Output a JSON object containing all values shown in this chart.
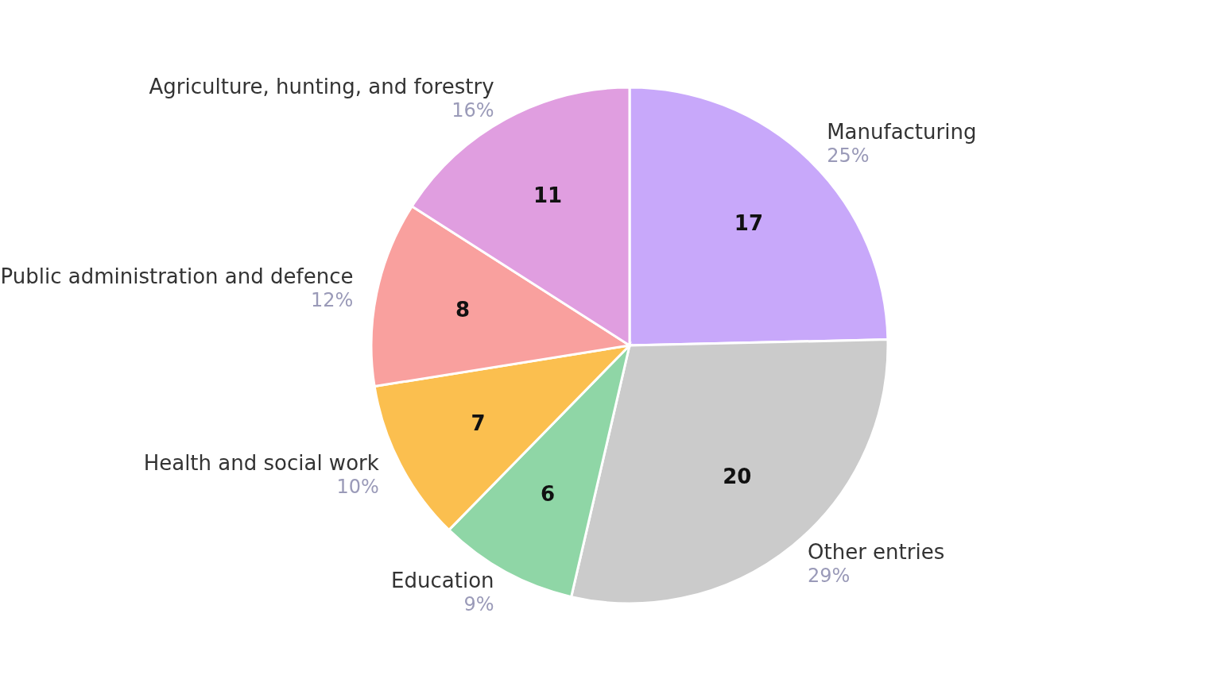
{
  "chart_data": {
    "type": "pie",
    "categories": [
      "Manufacturing",
      "Other entries",
      "Education",
      "Health and social work",
      "Public administration and defence",
      "Agriculture, hunting, and forestry"
    ],
    "values": [
      17,
      20,
      6,
      7,
      8,
      11
    ],
    "colors": [
      "#c8a8fa",
      "#cbcbcb",
      "#8fd6a6",
      "#fbbf4f",
      "#f9a09e",
      "#e09ee0"
    ],
    "data_labels": true,
    "annotations": [
      "25%",
      "29%",
      "9%",
      "10%",
      "12%",
      "16%"
    ]
  }
}
